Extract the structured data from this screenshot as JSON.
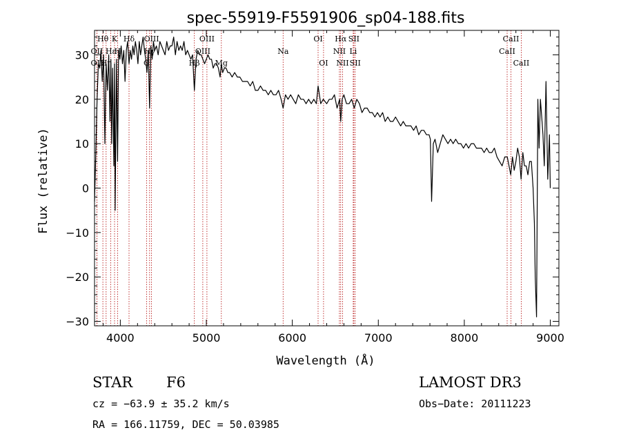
{
  "chart_data": {
    "type": "line",
    "title": "spec-55919-F5591906_sp04-188.fits",
    "xlabel": "Wavelength (Å)",
    "ylabel": "Flux (relative)",
    "xlim": [
      3700,
      9100
    ],
    "ylim": [
      -31,
      35.5
    ],
    "x_ticks": [
      4000,
      5000,
      6000,
      7000,
      8000,
      9000
    ],
    "y_ticks": [
      -30,
      -20,
      -10,
      0,
      10,
      20,
      30
    ],
    "x_tick_labels": [
      "4000",
      "5000",
      "6000",
      "7000",
      "8000",
      "9000"
    ],
    "y_tick_labels": [
      "−30",
      "−20",
      "−10",
      "0",
      "10",
      "20",
      "30"
    ],
    "series": [
      {
        "name": "spectrum",
        "color": "#000000",
        "x": [
          3700,
          3715,
          3730,
          3745,
          3760,
          3775,
          3790,
          3805,
          3820,
          3835,
          3850,
          3865,
          3880,
          3890,
          3900,
          3910,
          3925,
          3933,
          3940,
          3955,
          3968,
          3980,
          3995,
          4010,
          4025,
          4040,
          4055,
          4070,
          4085,
          4101,
          4115,
          4130,
          4145,
          4160,
          4175,
          4190,
          4205,
          4220,
          4235,
          4250,
          4265,
          4280,
          4295,
          4310,
          4325,
          4340,
          4355,
          4370,
          4385,
          4400,
          4420,
          4440,
          4460,
          4480,
          4500,
          4520,
          4540,
          4560,
          4580,
          4600,
          4620,
          4640,
          4660,
          4680,
          4700,
          4720,
          4740,
          4760,
          4780,
          4800,
          4820,
          4840,
          4861,
          4880,
          4900,
          4920,
          4940,
          4960,
          4980,
          5000,
          5020,
          5040,
          5060,
          5080,
          5100,
          5120,
          5140,
          5160,
          5175,
          5190,
          5210,
          5230,
          5250,
          5270,
          5300,
          5330,
          5360,
          5390,
          5420,
          5450,
          5480,
          5510,
          5540,
          5570,
          5600,
          5630,
          5660,
          5690,
          5720,
          5750,
          5780,
          5810,
          5840,
          5870,
          5893,
          5920,
          5950,
          5980,
          6010,
          6040,
          6070,
          6100,
          6130,
          6160,
          6190,
          6220,
          6250,
          6280,
          6300,
          6330,
          6360,
          6400,
          6430,
          6460,
          6490,
          6520,
          6550,
          6563,
          6580,
          6600,
          6630,
          6660,
          6690,
          6720,
          6750,
          6780,
          6810,
          6840,
          6870,
          6900,
          6930,
          6960,
          6990,
          7020,
          7050,
          7080,
          7110,
          7140,
          7170,
          7200,
          7230,
          7260,
          7290,
          7320,
          7350,
          7380,
          7410,
          7440,
          7470,
          7500,
          7530,
          7560,
          7590,
          7605,
          7620,
          7640,
          7660,
          7690,
          7720,
          7750,
          7780,
          7810,
          7840,
          7870,
          7900,
          7930,
          7960,
          7990,
          8020,
          8050,
          8080,
          8110,
          8140,
          8170,
          8200,
          8230,
          8260,
          8290,
          8320,
          8350,
          8380,
          8410,
          8440,
          8470,
          8500,
          8520,
          8540,
          8560,
          8580,
          8600,
          8620,
          8640,
          8660,
          8680,
          8700,
          8720,
          8740,
          8760,
          8780,
          8800,
          8815,
          8825,
          8840,
          8855,
          8870,
          8885,
          8900,
          8915,
          8930,
          8950,
          8970,
          8990,
          9000
        ],
        "y": [
          -3,
          8,
          20,
          28,
          27,
          31,
          24,
          30,
          10,
          28,
          22,
          30,
          15,
          29,
          10,
          27,
          5,
          28,
          -5,
          29,
          6,
          31,
          29,
          32,
          28,
          31,
          24,
          31,
          33,
          28,
          31,
          29,
          32,
          30,
          33,
          31,
          28,
          33,
          30,
          32,
          34,
          31,
          29,
          26,
          31,
          18,
          32,
          29,
          33,
          31,
          32,
          30,
          33,
          32,
          31,
          30,
          33,
          31,
          32,
          32,
          34,
          30,
          33,
          31,
          32,
          31,
          33,
          30,
          31,
          30,
          29,
          30,
          22,
          29,
          31,
          30,
          30,
          29,
          28,
          29,
          30,
          29,
          29,
          27,
          28,
          28,
          27,
          25,
          28,
          26,
          27,
          27,
          26,
          26,
          25,
          26,
          25,
          25,
          24,
          24,
          24,
          23,
          24,
          22,
          22,
          23,
          22,
          22,
          21,
          22,
          21,
          21,
          22,
          20,
          18,
          21,
          20,
          21,
          20,
          19,
          21,
          20,
          20,
          19,
          20,
          19,
          20,
          19,
          23,
          19,
          20,
          19,
          20,
          20,
          21,
          18,
          20,
          15,
          20,
          21,
          19,
          19,
          20,
          18,
          20,
          19,
          17,
          18,
          18,
          17,
          17,
          16,
          17,
          16,
          17,
          15,
          16,
          15,
          15,
          16,
          15,
          14,
          15,
          14,
          14,
          14,
          13,
          14,
          12,
          13,
          13,
          12,
          12,
          11,
          -3,
          10,
          11,
          8,
          10,
          12,
          11,
          10,
          11,
          10,
          11,
          10,
          10,
          9,
          10,
          9,
          10,
          10,
          9,
          9,
          9,
          8,
          9,
          8,
          8,
          9,
          7,
          6,
          5,
          7,
          7,
          5,
          3,
          7,
          4,
          6,
          9,
          7,
          2,
          8,
          5,
          5,
          3,
          6,
          6,
          0,
          -8,
          -20,
          -29,
          20,
          9,
          20,
          16,
          12,
          5,
          24,
          2,
          12,
          0
        ]
      }
    ],
    "spectral_lines": [
      {
        "label": "Hθ",
        "wavelength": 3797,
        "tier": 0
      },
      {
        "label": "K",
        "wavelength": 3933,
        "tier": 0
      },
      {
        "label": "Hδ",
        "wavelength": 4101,
        "tier": 0
      },
      {
        "label": "OIII",
        "wavelength": 4363,
        "tier": 0
      },
      {
        "label": "OIII",
        "wavelength": 5007,
        "tier": 0
      },
      {
        "label": "OI",
        "wavelength": 6300,
        "tier": 0
      },
      {
        "label": "Hα",
        "wavelength": 6563,
        "tier": 0
      },
      {
        "label": "SII",
        "wavelength": 6716,
        "tier": 0
      },
      {
        "label": "CaII",
        "wavelength": 8542,
        "tier": 0
      },
      {
        "label": "OII",
        "wavelength": 3727,
        "tier": 1
      },
      {
        "label": "Hε",
        "wavelength": 3889,
        "tier": 1
      },
      {
        "label": "H",
        "wavelength": 3968,
        "tier": 1
      },
      {
        "label": "Hγ",
        "wavelength": 4340,
        "tier": 1
      },
      {
        "label": "OIII",
        "wavelength": 4959,
        "tier": 1
      },
      {
        "label": "Na",
        "wavelength": 5893,
        "tier": 1
      },
      {
        "label": "NII",
        "wavelength": 6548,
        "tier": 1
      },
      {
        "label": "Li",
        "wavelength": 6708,
        "tier": 1
      },
      {
        "label": "CaII",
        "wavelength": 8498,
        "tier": 1
      },
      {
        "label": "OII",
        "wavelength": 3727,
        "tier": 2
      },
      {
        "label": "Hη",
        "wavelength": 3835,
        "tier": 2
      },
      {
        "label": "G",
        "wavelength": 4305,
        "tier": 2
      },
      {
        "label": "Hβ",
        "wavelength": 4861,
        "tier": 2
      },
      {
        "label": "Mg",
        "wavelength": 5175,
        "tier": 2
      },
      {
        "label": "OI",
        "wavelength": 6363,
        "tier": 2
      },
      {
        "label": "NII",
        "wavelength": 6584,
        "tier": 2
      },
      {
        "label": "SII",
        "wavelength": 6731,
        "tier": 2
      },
      {
        "label": "CaII",
        "wavelength": 8662,
        "tier": 2
      }
    ]
  },
  "info": {
    "object_class": "STAR",
    "subclass": "F6",
    "survey": "LAMOST DR3",
    "cz": "cz = −63.9 ± 35.2 km/s",
    "obs_date": "Obs−Date: 20111223",
    "radec": "RA = 166.11759, DEC =  50.03985"
  },
  "colors": {
    "line_marker": "#b00000",
    "spectrum": "#000000",
    "axes": "#000000"
  }
}
